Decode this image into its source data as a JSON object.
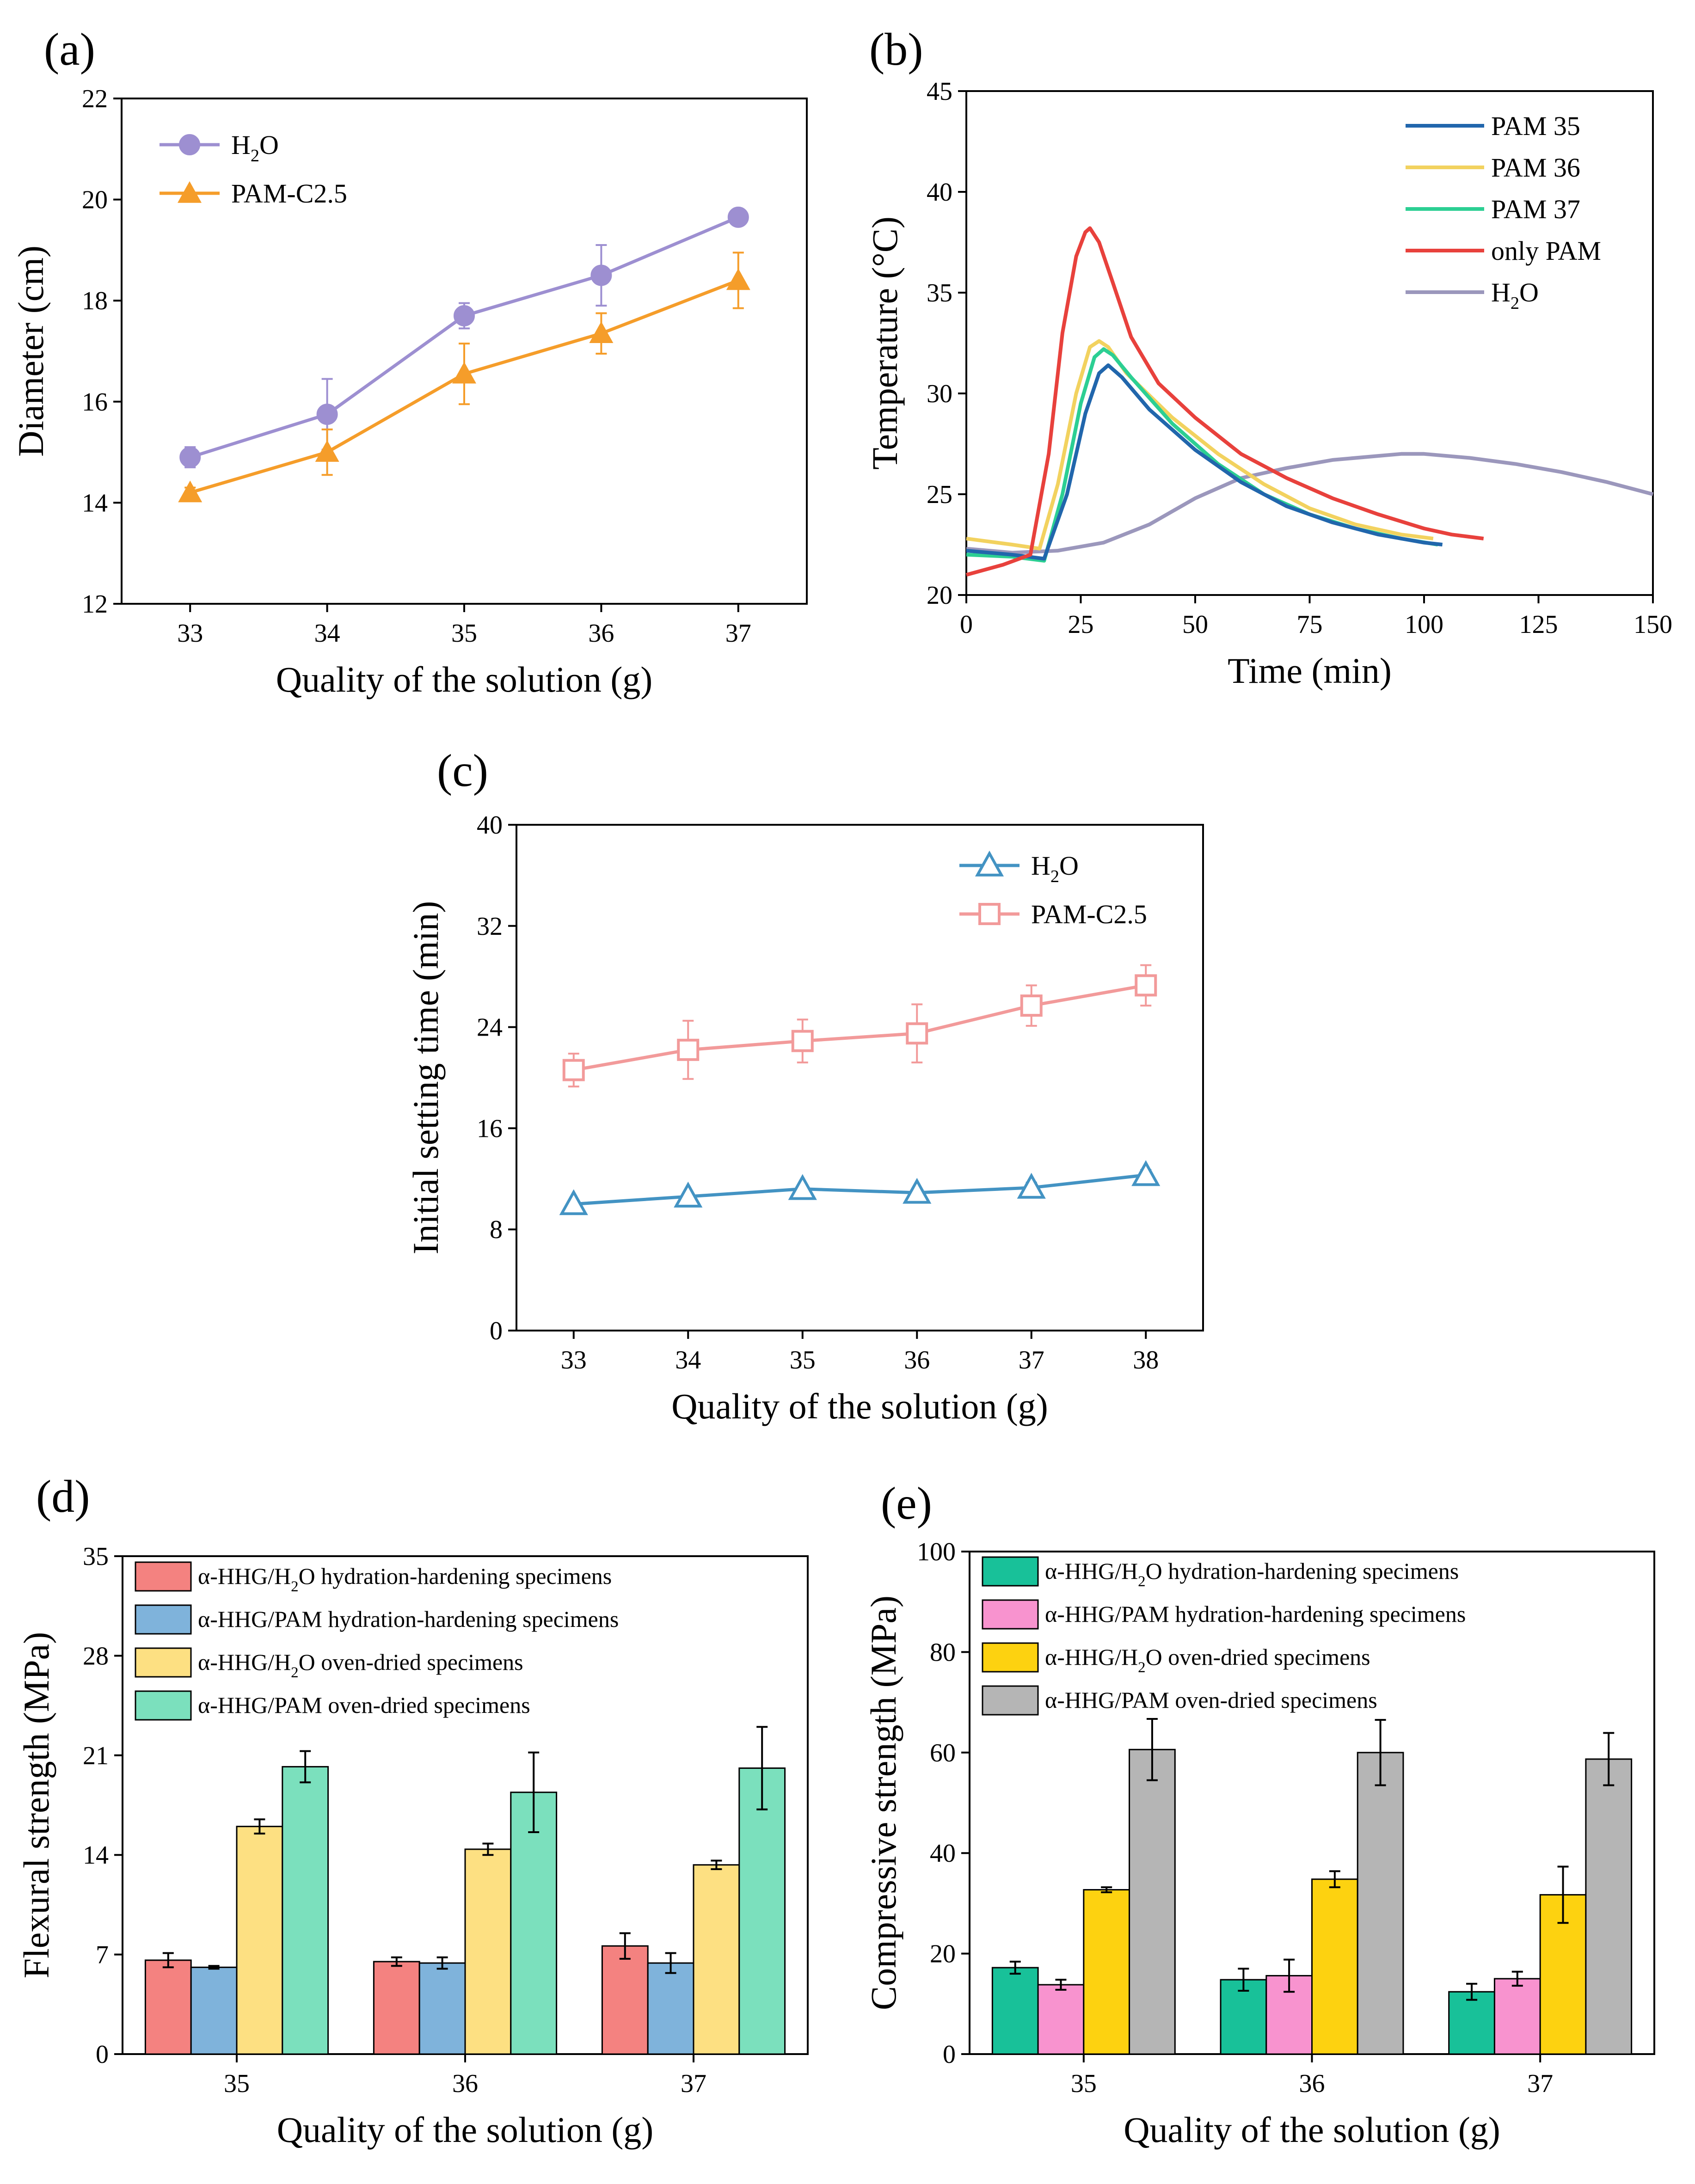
{
  "colors": {
    "a_h2o": "#9d8fd1",
    "a_pam": "#f59d2a",
    "b_pam35": "#2166ac",
    "b_pam36": "#f2d25f",
    "b_pam37": "#2ccf93",
    "b_only": "#e8413c",
    "b_h2o": "#9b97bc",
    "c_h2o": "#4393c3",
    "c_pam": "#f29a9a",
    "d_s1": "#f48280",
    "d_s2": "#7fb3db",
    "d_s3": "#fde082",
    "d_s4": "#7be0bd",
    "e_s1": "#18c199",
    "e_s2": "#f893cf",
    "e_s3": "#fdd210",
    "e_s4": "#b5b5b5"
  },
  "panels": {
    "a": {
      "label": "(a)"
    },
    "b": {
      "label": "(b)"
    },
    "c": {
      "label": "(c)"
    },
    "d": {
      "label": "(d)"
    },
    "e": {
      "label": "(e)"
    }
  },
  "chart_data": [
    {
      "panel": "a",
      "type": "line",
      "xlabel": "Quality of the solution (g)",
      "ylabel": "Diameter (cm)",
      "xlim": [
        32.5,
        37.5
      ],
      "ylim": [
        12,
        22
      ],
      "xticks": [
        33,
        34,
        35,
        36,
        37
      ],
      "yticks": [
        12,
        14,
        16,
        18,
        20,
        22
      ],
      "x": [
        33,
        34,
        35,
        36,
        37
      ],
      "series": [
        {
          "name": "H₂O",
          "name_main": "H",
          "name_sub": "2",
          "name_tail": "O",
          "marker": "circle",
          "values": [
            14.9,
            15.75,
            17.7,
            18.5,
            19.65
          ],
          "errors": [
            0.2,
            0.7,
            0.25,
            0.6,
            0.1
          ]
        },
        {
          "name": "PAM-C2.5",
          "name_main": "PAM-C2.5",
          "name_sub": "",
          "name_tail": "",
          "marker": "triangle",
          "values": [
            14.2,
            15.0,
            16.55,
            17.35,
            18.4
          ],
          "errors": [
            0.1,
            0.45,
            0.6,
            0.4,
            0.55
          ]
        }
      ]
    },
    {
      "panel": "b",
      "type": "line",
      "xlabel": "Time (min)",
      "ylabel": "Temperature (°C)",
      "xlim": [
        0,
        150
      ],
      "ylim": [
        20,
        45
      ],
      "xticks": [
        0,
        25,
        50,
        75,
        100,
        125,
        150
      ],
      "yticks": [
        20,
        25,
        30,
        35,
        40,
        45
      ],
      "series": [
        {
          "name": "PAM 35",
          "name_main": "PAM 35",
          "name_sub": "",
          "name_tail": "",
          "x": [
            0,
            10,
            17,
            22,
            26,
            29,
            31,
            34,
            40,
            50,
            60,
            70,
            80,
            90,
            100,
            104
          ],
          "y": [
            22.2,
            22.0,
            21.8,
            25.0,
            29.0,
            31.0,
            31.4,
            30.8,
            29.2,
            27.2,
            25.6,
            24.4,
            23.6,
            23.0,
            22.6,
            22.5
          ]
        },
        {
          "name": "PAM 36",
          "name_main": "PAM 36",
          "name_sub": "",
          "name_tail": "",
          "x": [
            0,
            10,
            16,
            20,
            24,
            27,
            29,
            31,
            35,
            45,
            55,
            65,
            75,
            85,
            95,
            102
          ],
          "y": [
            22.8,
            22.5,
            22.3,
            25.5,
            30.0,
            32.3,
            32.6,
            32.3,
            31.0,
            28.8,
            27.0,
            25.5,
            24.3,
            23.5,
            23.0,
            22.8
          ]
        },
        {
          "name": "PAM 37",
          "name_main": "PAM 37",
          "name_sub": "",
          "name_tail": "",
          "x": [
            0,
            10,
            17,
            21,
            25,
            28,
            30,
            32,
            36,
            45,
            55,
            65,
            75,
            85,
            95,
            103
          ],
          "y": [
            22.0,
            21.9,
            21.7,
            25.0,
            29.5,
            31.8,
            32.2,
            31.9,
            30.8,
            28.5,
            26.5,
            25.0,
            24.0,
            23.3,
            22.8,
            22.5
          ]
        },
        {
          "name": "only PAM",
          "name_main": "only PAM",
          "name_sub": "",
          "name_tail": "",
          "x": [
            0,
            8,
            14,
            18,
            21,
            24,
            26,
            27,
            29,
            32,
            36,
            42,
            50,
            60,
            70,
            80,
            90,
            100,
            106,
            113
          ],
          "y": [
            21.0,
            21.5,
            22.0,
            27.0,
            33.0,
            36.8,
            38.0,
            38.2,
            37.5,
            35.5,
            32.8,
            30.5,
            28.8,
            27.0,
            25.8,
            24.8,
            24.0,
            23.3,
            23.0,
            22.8
          ]
        },
        {
          "name": "H₂O",
          "name_main": "H",
          "name_sub": "2",
          "name_tail": "O",
          "x": [
            0,
            10,
            20,
            30,
            40,
            50,
            60,
            70,
            80,
            90,
            95,
            100,
            110,
            120,
            130,
            140,
            150
          ],
          "y": [
            22.3,
            22.1,
            22.2,
            22.6,
            23.5,
            24.8,
            25.8,
            26.3,
            26.7,
            26.9,
            27.0,
            27.0,
            26.8,
            26.5,
            26.1,
            25.6,
            25.0
          ]
        }
      ]
    },
    {
      "panel": "c",
      "type": "line",
      "xlabel": "Quality of the solution (g)",
      "ylabel": "Initial setting time (min)",
      "xlim": [
        32.5,
        38.5
      ],
      "ylim": [
        0,
        40
      ],
      "xticks": [
        33,
        34,
        35,
        36,
        37,
        38
      ],
      "yticks": [
        0,
        8,
        16,
        24,
        32,
        40
      ],
      "x": [
        33,
        34,
        35,
        36,
        37,
        38
      ],
      "series": [
        {
          "name": "H₂O",
          "name_main": "H",
          "name_sub": "2",
          "name_tail": "O",
          "marker": "triangle-open",
          "values": [
            10.0,
            10.6,
            11.2,
            10.9,
            11.3,
            12.3
          ],
          "errors": [
            0.3,
            0.3,
            0.3,
            0.3,
            0.4,
            0.4
          ]
        },
        {
          "name": "PAM-C2.5",
          "name_main": "PAM-C2.5",
          "name_sub": "",
          "name_tail": "",
          "marker": "square-open",
          "values": [
            20.6,
            22.2,
            22.9,
            23.5,
            25.7,
            27.3
          ],
          "errors": [
            1.3,
            2.3,
            1.7,
            2.3,
            1.6,
            1.6
          ]
        }
      ]
    },
    {
      "panel": "d",
      "type": "bar",
      "xlabel": "Quality of the solution (g)",
      "ylabel": "Flexural strength (MPa)",
      "ylim": [
        0,
        35
      ],
      "yticks": [
        0,
        7,
        14,
        21,
        28,
        35
      ],
      "categories": [
        "35",
        "36",
        "37"
      ],
      "series": [
        {
          "name": "α-HHG/H₂O hydration-hardening specimens",
          "name_main": "α-HHG/H",
          "name_sub": "2",
          "name_tail": "O hydration-hardening specimens",
          "values": [
            6.6,
            6.5,
            7.6
          ],
          "errors": [
            0.5,
            0.3,
            0.9
          ]
        },
        {
          "name": "α-HHG/PAM hydration-hardening specimens",
          "name_main": "α-HHG/PAM hydration-hardening specimens",
          "name_sub": "",
          "name_tail": "",
          "values": [
            6.1,
            6.4,
            6.4
          ],
          "errors": [
            0.1,
            0.4,
            0.7
          ]
        },
        {
          "name": "α-HHG/H₂O oven-dried specimens",
          "name_main": "α-HHG/H",
          "name_sub": "2",
          "name_tail": "O oven-dried specimens",
          "values": [
            16.0,
            14.4,
            13.3
          ],
          "errors": [
            0.5,
            0.4,
            0.3
          ]
        },
        {
          "name": "α-HHG/PAM oven-dried specimens",
          "name_main": "α-HHG/PAM oven-dried specimens",
          "name_sub": "",
          "name_tail": "",
          "values": [
            20.2,
            18.4,
            20.1
          ],
          "errors": [
            1.1,
            2.8,
            2.9
          ]
        }
      ]
    },
    {
      "panel": "e",
      "type": "bar",
      "xlabel": "Quality of the solution (g)",
      "ylabel": "Compressive strength (MPa)",
      "ylim": [
        0,
        100
      ],
      "yticks": [
        0,
        20,
        40,
        60,
        80,
        100
      ],
      "categories": [
        "35",
        "36",
        "37"
      ],
      "series": [
        {
          "name": "α-HHG/H₂O hydration-hardening specimens",
          "name_main": "α-HHG/H",
          "name_sub": "2",
          "name_tail": "O hydration-hardening specimens",
          "values": [
            17.2,
            14.8,
            12.4
          ],
          "errors": [
            1.2,
            2.2,
            1.6
          ]
        },
        {
          "name": "α-HHG/PAM hydration-hardening specimens",
          "name_main": "α-HHG/PAM hydration-hardening specimens",
          "name_sub": "",
          "name_tail": "",
          "values": [
            13.8,
            15.6,
            15.0
          ],
          "errors": [
            1.0,
            3.2,
            1.4
          ]
        },
        {
          "name": "α-HHG/H₂O oven-dried specimens",
          "name_main": "α-HHG/H",
          "name_sub": "2",
          "name_tail": "O oven-dried specimens",
          "values": [
            32.7,
            34.8,
            31.7
          ],
          "errors": [
            0.5,
            1.6,
            5.6
          ]
        },
        {
          "name": "α-HHG/PAM oven-dried specimens",
          "name_main": "α-HHG/PAM oven-dried specimens",
          "name_sub": "",
          "name_tail": "",
          "values": [
            60.6,
            60.0,
            58.7
          ],
          "errors": [
            6.1,
            6.5,
            5.2
          ]
        }
      ]
    }
  ]
}
